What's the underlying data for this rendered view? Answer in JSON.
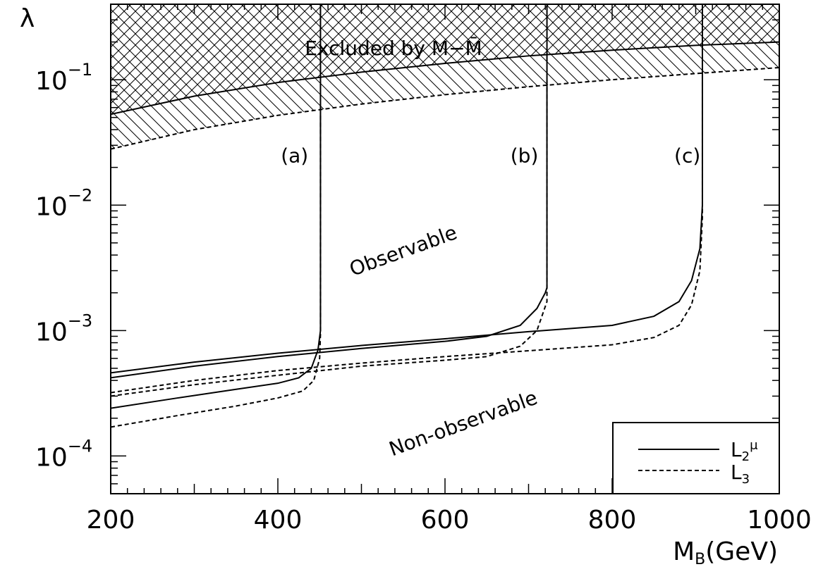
{
  "chart_data": {
    "type": "line",
    "title": "",
    "xlabel": {
      "main": "M",
      "sub": "B",
      "rest": "(GeV)"
    },
    "ylabel": "λ",
    "xlim": [
      200,
      1000
    ],
    "ylim": [
      5e-05,
      0.4
    ],
    "yscale": "log",
    "xticks": [
      200,
      400,
      600,
      800,
      1000
    ],
    "xtick_labels": [
      "200",
      "400",
      "600",
      "800",
      "1000"
    ],
    "yticks": [
      0.0001,
      0.001,
      0.01,
      0.1
    ],
    "ytick_labels": [
      {
        "base": "10",
        "exp": "−4"
      },
      {
        "base": "10",
        "exp": "−3"
      },
      {
        "base": "10",
        "exp": "−2"
      },
      {
        "base": "10",
        "exp": "−1"
      }
    ],
    "regions": {
      "excluded_label": "Excluded by M−M̄",
      "observable_label": "Observable",
      "non_observable_label": "Non-observable"
    },
    "curve_labels": [
      {
        "text": "(a)",
        "x": 420,
        "y": 0.022
      },
      {
        "text": "(b)",
        "x": 695,
        "y": 0.022
      },
      {
        "text": "(c)",
        "x": 890,
        "y": 0.022
      }
    ],
    "legend": {
      "position": "bottom-right",
      "entries": [
        {
          "label": "L",
          "sub": "2",
          "sup": "μ",
          "style": "solid"
        },
        {
          "label": "L",
          "sub": "3",
          "sup": "",
          "style": "dashed"
        }
      ]
    },
    "series": [
      {
        "name": "L2μ",
        "style": "solid",
        "role": "exclusion",
        "x": [
          200,
          300,
          400,
          500,
          600,
          700,
          800,
          900,
          1000
        ],
        "y": [
          0.053,
          0.074,
          0.095,
          0.115,
          0.135,
          0.155,
          0.172,
          0.188,
          0.2
        ]
      },
      {
        "name": "L3",
        "style": "dashed",
        "role": "exclusion",
        "x": [
          200,
          300,
          400,
          500,
          600,
          700,
          800,
          900,
          1000
        ],
        "y": [
          0.028,
          0.04,
          0.052,
          0.064,
          0.076,
          0.088,
          0.1,
          0.112,
          0.125
        ]
      },
      {
        "name": "L2μ",
        "style": "solid",
        "curve": "a",
        "x": [
          200,
          280,
          350,
          400,
          425,
          440,
          448,
          451,
          451,
          451
        ],
        "y": [
          0.00024,
          0.00029,
          0.00034,
          0.00038,
          0.00042,
          0.0005,
          0.0007,
          0.001,
          0.1,
          0.4
        ]
      },
      {
        "name": "L3",
        "style": "dashed",
        "curve": "a",
        "x": [
          200,
          280,
          350,
          400,
          430,
          443,
          450,
          451,
          451
        ],
        "y": [
          0.00017,
          0.00021,
          0.00025,
          0.00029,
          0.00033,
          0.0004,
          0.0006,
          0.00095,
          0.054
        ]
      },
      {
        "name": "L2μ",
        "style": "solid",
        "curve": "b",
        "x": [
          200,
          300,
          400,
          500,
          600,
          650,
          690,
          710,
          720,
          722,
          722
        ],
        "y": [
          0.00042,
          0.00052,
          0.00062,
          0.00072,
          0.00082,
          0.0009,
          0.0011,
          0.0015,
          0.002,
          0.0022,
          0.4
        ]
      },
      {
        "name": "L3",
        "style": "dashed",
        "curve": "b",
        "x": [
          200,
          300,
          400,
          500,
          600,
          650,
          690,
          710,
          722,
          722
        ],
        "y": [
          0.0003,
          0.00037,
          0.00044,
          0.00052,
          0.00058,
          0.00062,
          0.00075,
          0.001,
          0.0017,
          0.104
        ]
      },
      {
        "name": "L2μ",
        "style": "solid",
        "curve": "c",
        "x": [
          200,
          300,
          400,
          500,
          600,
          700,
          800,
          850,
          880,
          895,
          905,
          908,
          908
        ],
        "y": [
          0.00046,
          0.00056,
          0.00066,
          0.00076,
          0.00086,
          0.00098,
          0.0011,
          0.0013,
          0.0017,
          0.0025,
          0.0045,
          0.01,
          0.4
        ]
      },
      {
        "name": "L3",
        "style": "dashed",
        "curve": "c",
        "x": [
          200,
          300,
          400,
          500,
          600,
          700,
          800,
          850,
          880,
          895,
          905,
          908,
          908
        ],
        "y": [
          0.00032,
          0.0004,
          0.00048,
          0.00055,
          0.00062,
          0.00069,
          0.00077,
          0.00088,
          0.0011,
          0.0016,
          0.003,
          0.008,
          0.19
        ]
      }
    ]
  }
}
